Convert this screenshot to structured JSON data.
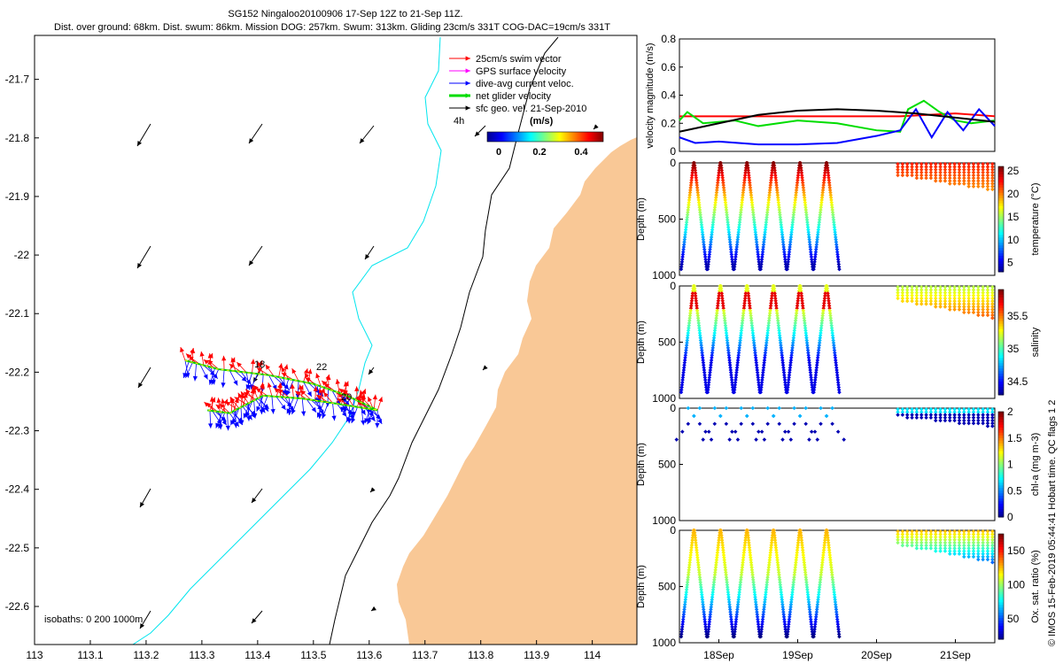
{
  "header": {
    "title": "SG152 Ningaloo20100906 17-Sep 12Z to 21-Sep 11Z.",
    "subtitle": "Dist. over ground: 68km. Dist. swum: 86km. Mission DOG: 257km. Swum: 313km. Gliding 23cm/s 331T COG-DAC=19cm/s 331T"
  },
  "map": {
    "x_ticks": [
      "113",
      "113.1",
      "113.2",
      "113.3",
      "113.4",
      "113.5",
      "113.6",
      "113.7",
      "113.8",
      "113.9",
      "114"
    ],
    "y_ticks": [
      "-21.7",
      "-21.8",
      "-21.9",
      "-22",
      "-22.1",
      "-22.2",
      "-22.3",
      "-22.4",
      "-22.5",
      "-22.6"
    ],
    "xlim": [
      113.0,
      114.08
    ],
    "ylim": [
      -22.665,
      -21.625
    ],
    "legend": [
      {
        "label": "25cm/s swim vector",
        "color": "#ff0000"
      },
      {
        "label": "GPS surface velocity",
        "color": "#ff00ff"
      },
      {
        "label": "dive-avg current veloc.",
        "color": "#0000ff"
      },
      {
        "label": "net glider velocity",
        "color": "#00dd00"
      },
      {
        "label": "sfc geo. vel. 21-Sep-2010",
        "color": "#000000"
      }
    ],
    "time_label": "4h",
    "colorbar_label": "(m/s)",
    "colorbar_ticks": [
      "0",
      "0.2",
      "0.4"
    ],
    "day_labels": [
      "18",
      "20",
      "22"
    ],
    "isobath_label": "isobaths: 0   200  1000m",
    "land_color": "#f9c896",
    "isobath_200_color": "#00e5ee"
  },
  "panels": {
    "time_ticks": [
      "18Sep",
      "19Sep",
      "20Sep",
      "21Sep"
    ],
    "depth_ticks": [
      "0",
      "500",
      "1000"
    ],
    "depth_label": "Depth (m)",
    "velocity": {
      "ylabel": "velocity magnitude (m/s)",
      "yticks": [
        "0",
        "0.2",
        "0.4",
        "0.6",
        "0.8"
      ],
      "ylim": [
        0,
        0.8
      ]
    },
    "temperature": {
      "label": "temperature (°C)",
      "ticks": [
        "5",
        "10",
        "15",
        "20",
        "25"
      ],
      "range": [
        3,
        26
      ]
    },
    "salinity": {
      "label": "salinity",
      "ticks": [
        "34.5",
        "35",
        "35.5"
      ],
      "range": [
        34.3,
        35.9
      ]
    },
    "chla": {
      "label": "chl-a (mg m-3)",
      "ticks": [
        "0",
        "0.5",
        "1",
        "1.5",
        "2"
      ],
      "range": [
        0,
        2
      ]
    },
    "oxygen": {
      "label": "Ox. sat. ratio (%)",
      "ticks": [
        "50",
        "100",
        "150"
      ],
      "range": [
        20,
        175
      ]
    }
  },
  "footer": "© IMOS 15-Feb-2019 05:44:41 Hobart time. QC flags 1  2",
  "chart_data": [
    {
      "type": "scatter",
      "description_key": "glider map",
      "xlim": [
        113.0,
        114.08
      ],
      "ylim": [
        -22.665,
        -21.625
      ],
      "track": [
        [
          113.27,
          -22.18
        ],
        [
          113.33,
          -22.195
        ],
        [
          113.42,
          -22.205
        ],
        [
          113.5,
          -22.22
        ],
        [
          113.56,
          -22.24
        ],
        [
          113.615,
          -22.265
        ],
        [
          113.55,
          -22.255
        ],
        [
          113.48,
          -22.245
        ],
        [
          113.41,
          -22.24
        ],
        [
          113.38,
          -22.255
        ],
        [
          113.35,
          -22.27
        ],
        [
          113.31,
          -22.265
        ]
      ]
    },
    {
      "type": "line",
      "ylabel": "velocity magnitude (m/s)",
      "ylim": [
        0,
        0.8
      ],
      "series": [
        {
          "color": "#ff0000",
          "x": [
            17.5,
            19.5,
            20.3,
            21.0,
            21.5
          ],
          "values": [
            0.25,
            0.25,
            0.25,
            0.27,
            0.25
          ]
        },
        {
          "color": "#00dd00",
          "x": [
            17.5,
            17.6,
            17.8,
            18.2,
            18.5,
            19.0,
            19.5,
            20.0,
            20.3,
            20.4,
            20.6,
            20.8,
            21.0,
            21.2,
            21.5
          ],
          "values": [
            0.22,
            0.28,
            0.2,
            0.22,
            0.18,
            0.22,
            0.2,
            0.15,
            0.14,
            0.3,
            0.36,
            0.28,
            0.22,
            0.2,
            0.22
          ]
        },
        {
          "color": "#0000ff",
          "x": [
            17.5,
            17.7,
            18.0,
            18.5,
            19.0,
            19.5,
            20.0,
            20.3,
            20.5,
            20.7,
            20.9,
            21.1,
            21.3,
            21.5
          ],
          "values": [
            0.1,
            0.06,
            0.07,
            0.05,
            0.05,
            0.06,
            0.11,
            0.15,
            0.3,
            0.1,
            0.28,
            0.15,
            0.3,
            0.18
          ]
        },
        {
          "color": "#000000",
          "x": [
            17.5,
            18.0,
            18.5,
            19.0,
            19.5,
            20.0,
            20.5,
            21.0,
            21.5
          ],
          "values": [
            0.14,
            0.2,
            0.26,
            0.29,
            0.3,
            0.29,
            0.27,
            0.24,
            0.21
          ]
        }
      ]
    },
    {
      "type": "scatter",
      "ylabel": "Depth (m)",
      "x_days": [
        17.5,
        21.5
      ],
      "dives_start_day": 17.6,
      "dives_count": 12,
      "dives_end_day": 19.45,
      "late_block_days": [
        20.27,
        21.5
      ],
      "max_depth": 1000
    }
  ]
}
